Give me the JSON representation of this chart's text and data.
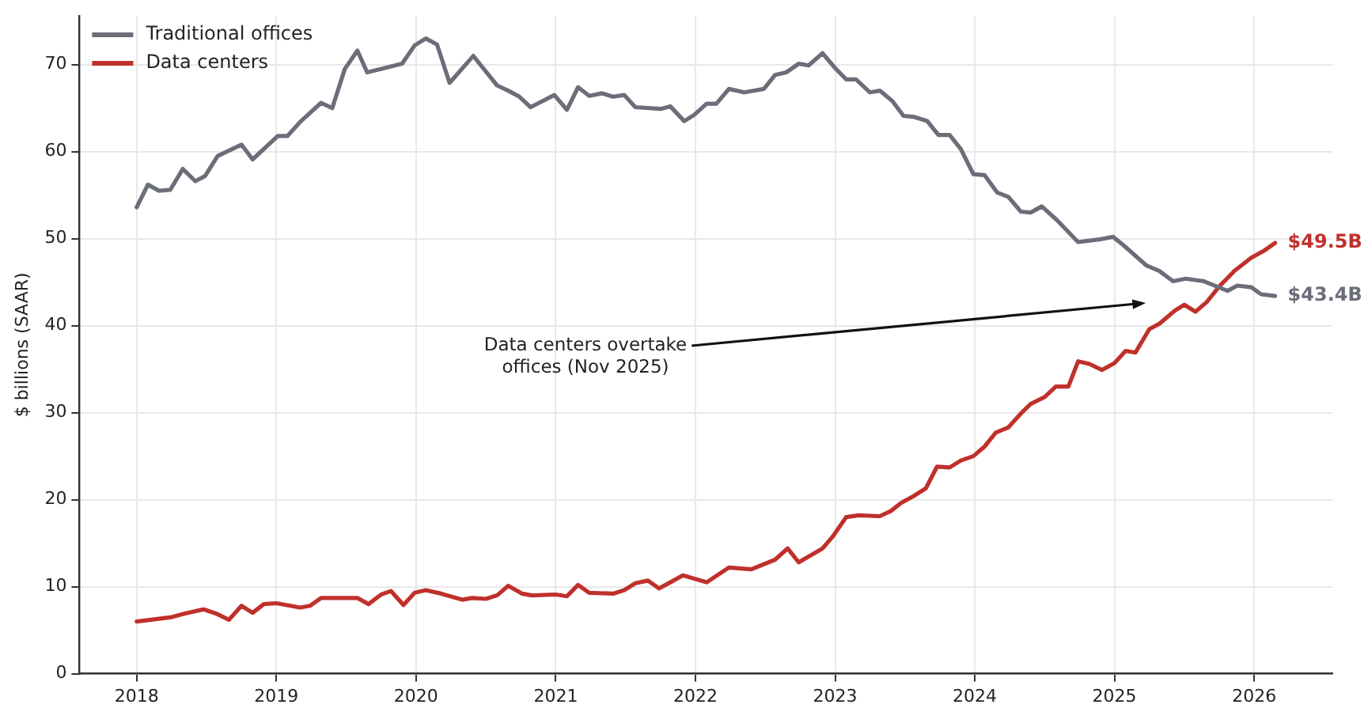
{
  "chart_data": {
    "type": "line",
    "ylabel": "$ billions (SAAR)",
    "xlim": [
      2017.59,
      2026.56
    ],
    "ylim": [
      0,
      75.6
    ],
    "xticks": [
      2018,
      2019,
      2020,
      2021,
      2022,
      2023,
      2024,
      2025,
      2026
    ],
    "yticks": [
      0,
      10,
      20,
      30,
      40,
      50,
      60,
      70
    ],
    "grid": true,
    "legend": "top left",
    "marker": "none",
    "line_style": "solid",
    "series": [
      {
        "name": "Traditional offices",
        "color": "#6b6e78",
        "x": [
          2018.0,
          2018.08,
          2018.16,
          2018.24,
          2018.33,
          2018.42,
          2018.49,
          2018.58,
          2018.75,
          2018.83,
          2019.01,
          2019.08,
          2019.17,
          2019.32,
          2019.4,
          2019.49,
          2019.58,
          2019.65,
          2019.9,
          2019.99,
          2020.07,
          2020.15,
          2020.24,
          2020.41,
          2020.51,
          2020.58,
          2020.66,
          2020.74,
          2020.82,
          2020.99,
          2021.08,
          2021.16,
          2021.24,
          2021.33,
          2021.41,
          2021.49,
          2021.57,
          2021.75,
          2021.82,
          2021.92,
          2021.99,
          2022.08,
          2022.15,
          2022.24,
          2022.35,
          2022.49,
          2022.57,
          2022.65,
          2022.74,
          2022.81,
          2022.91,
          2023.0,
          2023.08,
          2023.15,
          2023.25,
          2023.32,
          2023.41,
          2023.49,
          2023.56,
          2023.66,
          2023.74,
          2023.82,
          2023.9,
          2023.99,
          2024.07,
          2024.16,
          2024.24,
          2024.33,
          2024.4,
          2024.48,
          2024.59,
          2024.74,
          2024.89,
          2024.99,
          2025.06,
          2025.23,
          2025.32,
          2025.42,
          2025.51,
          2025.64,
          2025.81,
          2025.88,
          2025.98,
          2026.05,
          2026.15
        ],
        "values": [
          53.6,
          56.2,
          55.5,
          55.6,
          58.0,
          56.6,
          57.2,
          59.5,
          60.8,
          59.1,
          61.8,
          61.8,
          63.4,
          65.6,
          65.0,
          69.5,
          71.6,
          69.1,
          70.1,
          72.2,
          73.0,
          72.3,
          67.9,
          71.0,
          69.0,
          67.6,
          67.0,
          66.3,
          65.1,
          66.5,
          64.8,
          67.4,
          66.4,
          66.7,
          66.3,
          66.5,
          65.1,
          64.9,
          65.2,
          63.5,
          64.2,
          65.5,
          65.5,
          67.2,
          66.8,
          67.2,
          68.8,
          69.1,
          70.1,
          69.9,
          71.3,
          69.6,
          68.3,
          68.3,
          66.8,
          67.0,
          65.8,
          64.1,
          64.0,
          63.5,
          61.9,
          61.9,
          60.3,
          57.4,
          57.3,
          55.3,
          54.8,
          53.1,
          53.0,
          53.7,
          52.1,
          49.6,
          49.9,
          50.2,
          49.3,
          46.9,
          46.3,
          45.1,
          45.4,
          45.1,
          44.0,
          44.6,
          44.4,
          43.6,
          43.4
        ]
      },
      {
        "name": "Data centers",
        "color": "#c0302b",
        "x": [
          2018.0,
          2018.25,
          2018.34,
          2018.48,
          2018.57,
          2018.66,
          2018.75,
          2018.83,
          2018.91,
          2019.0,
          2019.17,
          2019.24,
          2019.32,
          2019.58,
          2019.66,
          2019.75,
          2019.82,
          2019.91,
          2019.99,
          2020.07,
          2020.18,
          2020.33,
          2020.4,
          2020.5,
          2020.58,
          2020.66,
          2020.76,
          2020.83,
          2021.0,
          2021.08,
          2021.16,
          2021.24,
          2021.41,
          2021.49,
          2021.57,
          2021.66,
          2021.74,
          2021.82,
          2021.91,
          2022.08,
          2022.24,
          2022.4,
          2022.57,
          2022.66,
          2022.74,
          2022.91,
          2022.98,
          2023.08,
          2023.17,
          2023.32,
          2023.4,
          2023.47,
          2023.56,
          2023.65,
          2023.73,
          2023.82,
          2023.9,
          2023.99,
          2024.07,
          2024.15,
          2024.24,
          2024.33,
          2024.4,
          2024.5,
          2024.58,
          2024.67,
          2024.74,
          2024.82,
          2024.91,
          2025.0,
          2025.08,
          2025.15,
          2025.25,
          2025.32,
          2025.43,
          2025.5,
          2025.58,
          2025.66,
          2025.75,
          2025.86,
          2025.98,
          2026.07,
          2026.15
        ],
        "values": [
          6.0,
          6.5,
          6.9,
          7.4,
          6.9,
          6.2,
          7.8,
          7.0,
          8.0,
          8.1,
          7.6,
          7.8,
          8.7,
          8.7,
          8.0,
          9.1,
          9.5,
          7.9,
          9.3,
          9.6,
          9.2,
          8.5,
          8.7,
          8.6,
          9.0,
          10.1,
          9.2,
          9.0,
          9.1,
          8.9,
          10.2,
          9.3,
          9.2,
          9.6,
          10.4,
          10.7,
          9.8,
          10.5,
          11.3,
          10.5,
          12.2,
          12.0,
          13.1,
          14.4,
          12.8,
          14.4,
          15.7,
          18.0,
          18.2,
          18.1,
          18.7,
          19.6,
          20.4,
          21.3,
          23.8,
          23.7,
          24.5,
          25.0,
          26.1,
          27.7,
          28.3,
          29.9,
          31.0,
          31.8,
          33.0,
          33.0,
          35.9,
          35.6,
          34.9,
          35.7,
          37.1,
          36.9,
          39.6,
          40.2,
          41.7,
          42.4,
          41.6,
          42.7,
          44.5,
          46.3,
          47.8,
          48.6,
          49.5
        ]
      }
    ],
    "annotations": [
      {
        "text": "$49.5B",
        "x": 2026.15,
        "y": 49.5
      },
      {
        "text": "$43.4B",
        "x": 2026.15,
        "y": 43.4
      },
      "Data centers overtake\noffices (Nov 2025)"
    ]
  }
}
